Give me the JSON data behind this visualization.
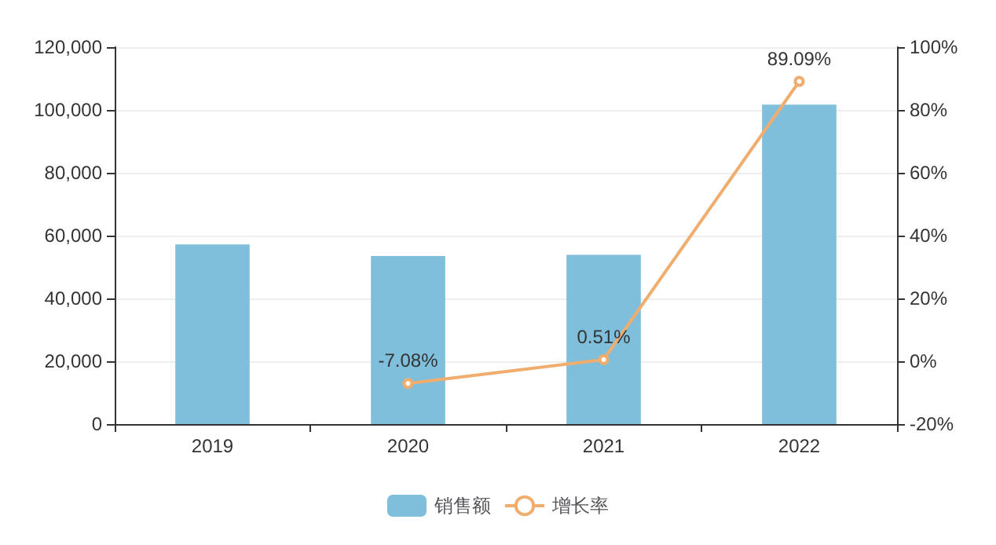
{
  "chart_data": {
    "type": "bar",
    "categories": [
      "2019",
      "2020",
      "2021",
      "2022"
    ],
    "series": [
      {
        "name": "销售额",
        "color": "#7fbfdc",
        "values": [
          57200,
          53500,
          53900,
          101700
        ]
      },
      {
        "name": "增长率",
        "type": "line",
        "axis": "y2",
        "color": "#f0ad6e",
        "marker": "circle",
        "values": [
          null,
          -7.08,
          0.51,
          89.09
        ],
        "value_labels": [
          null,
          "-7.08%",
          "0.51%",
          "89.09%"
        ]
      }
    ],
    "ylim": [
      0,
      120000
    ],
    "yticks": [
      0,
      {
        "value": 20000,
        "label": "20,000"
      },
      {
        "value": 40000,
        "label": "40,000"
      },
      {
        "value": 60000,
        "label": "60,000"
      },
      {
        "value": 80000,
        "label": "80,000"
      },
      {
        "value": 100000,
        "label": "100,000"
      },
      {
        "value": 120000,
        "label": "120,000"
      }
    ],
    "y2lim": [
      -20,
      100
    ],
    "y2ticks": [
      {
        "value": -20,
        "label": "-20%"
      },
      {
        "value": 0,
        "label": "0%"
      },
      {
        "value": 20,
        "label": "20%"
      },
      {
        "value": 40,
        "label": "40%"
      },
      {
        "value": 60,
        "label": "60%"
      },
      {
        "value": 80,
        "label": "80%"
      },
      {
        "value": 100,
        "label": "100%"
      }
    ],
    "grid": "y",
    "legend": "bottom"
  }
}
